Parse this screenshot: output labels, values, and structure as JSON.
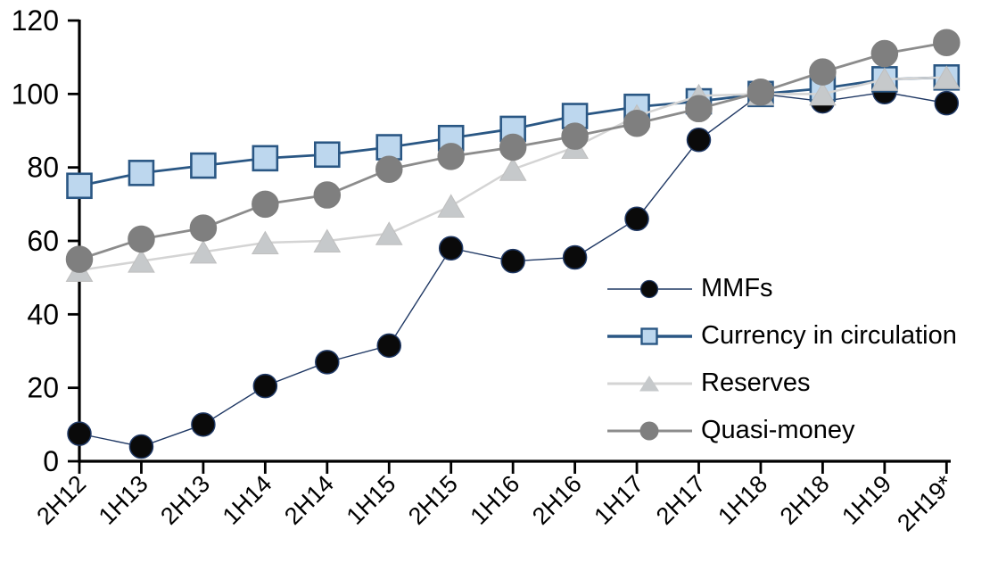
{
  "page": {
    "background": "#FFFFFF"
  },
  "chart_data": {
    "type": "line",
    "title": "",
    "xlabel": "",
    "ylabel": "",
    "grid": false,
    "legend_position": "inside-right",
    "categories": [
      "2H12",
      "1H13",
      "2H13",
      "1H14",
      "2H14",
      "1H15",
      "2H15",
      "1H16",
      "2H16",
      "1H17",
      "2H17",
      "1H18",
      "2H18",
      "1H19",
      "2H19*"
    ],
    "x_axis": {
      "label_rotation": -45,
      "tick_color": "#000000"
    },
    "y_axis": {
      "min": 0,
      "max": 120,
      "step": 20,
      "tick_labels": [
        "0",
        "20",
        "40",
        "60",
        "80",
        "100",
        "120"
      ]
    },
    "series": [
      {
        "name": "MMFs",
        "marker": "circle",
        "marker_size": 26,
        "marker_color": "#0a0a0a",
        "marker_stroke": "#1F3864",
        "line_color": "#1F3864",
        "line_width": 1.4,
        "values": [
          7.5,
          4,
          10,
          20.5,
          27,
          31.5,
          58,
          54.5,
          55.5,
          66,
          87.5,
          100,
          98,
          100.5,
          97.5
        ]
      },
      {
        "name": "Currency in circulation",
        "marker": "square",
        "marker_size": 27,
        "marker_color": "#BDD7EE",
        "marker_stroke": "#2A5784",
        "line_color": "#2A5784",
        "line_width": 2.8,
        "values": [
          75,
          78.5,
          80.5,
          82.5,
          83.5,
          85.5,
          88,
          90.5,
          94,
          96.5,
          98,
          100,
          101.5,
          104,
          104.5
        ]
      },
      {
        "name": "Reserves",
        "marker": "triangle",
        "marker_size": 29,
        "marker_color": "#C6C9CB",
        "marker_stroke": "#BFBFBF",
        "line_color": "#D4D4D4",
        "line_width": 2.5,
        "values": [
          52,
          54.5,
          57,
          59.5,
          60,
          62,
          69.5,
          79.5,
          85.5,
          94,
          99.5,
          100,
          100,
          104,
          104.5
        ]
      },
      {
        "name": "Quasi-money",
        "marker": "circle",
        "marker_size": 29,
        "marker_color": "#7F7F7F",
        "marker_stroke": "#7F7F7F",
        "line_color": "#8C8C8C",
        "line_width": 2.8,
        "values": [
          55,
          60.5,
          63.5,
          70,
          72.5,
          79.5,
          83,
          85.5,
          88.5,
          92,
          96,
          100.5,
          106,
          111,
          114
        ]
      }
    ]
  }
}
